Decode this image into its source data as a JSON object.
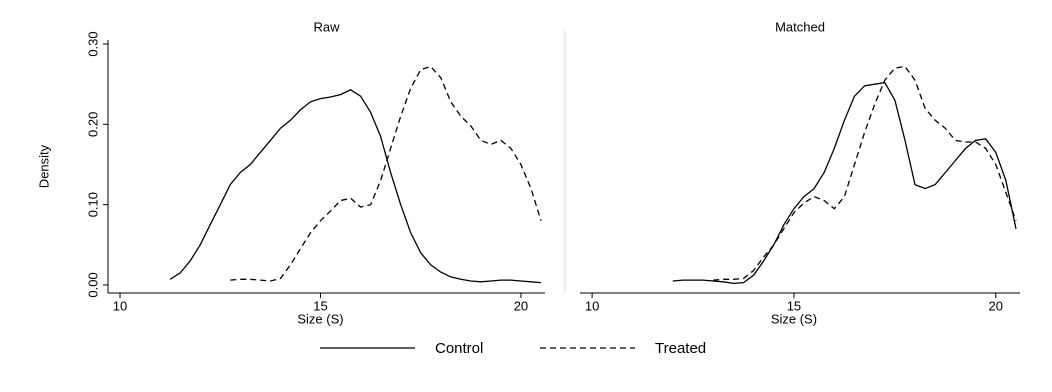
{
  "chart_data": [
    {
      "type": "line",
      "title": "Raw",
      "x_label": "Size (S)",
      "y_label": "Density",
      "x": [
        11.25,
        11.5,
        11.75,
        12,
        12.25,
        12.5,
        12.75,
        13,
        13.25,
        13.5,
        13.75,
        14,
        14.25,
        14.5,
        14.75,
        15,
        15.25,
        15.5,
        15.75,
        16,
        16.25,
        16.5,
        16.75,
        17,
        17.25,
        17.5,
        17.75,
        18,
        18.25,
        18.5,
        18.75,
        19,
        19.25,
        19.5,
        19.75,
        20,
        20.25,
        20.5
      ],
      "series": [
        {
          "name": "Control",
          "color": "#000000",
          "dash": "none",
          "values": [
            0.007,
            0.015,
            0.03,
            0.05,
            0.075,
            0.1,
            0.125,
            0.14,
            0.15,
            0.165,
            0.18,
            0.195,
            0.205,
            0.218,
            0.228,
            0.232,
            0.234,
            0.237,
            0.243,
            0.235,
            0.215,
            0.185,
            0.14,
            0.1,
            0.065,
            0.04,
            0.025,
            0.016,
            0.01,
            0.007,
            0.005,
            0.004,
            0.005,
            0.006,
            0.006,
            0.005,
            0.004,
            0.003
          ]
        },
        {
          "name": "Treated",
          "color": "#000000",
          "dash": "6,4",
          "values": [
            null,
            null,
            null,
            null,
            null,
            null,
            0.006,
            0.007,
            0.007,
            0.006,
            0.005,
            0.008,
            0.025,
            0.045,
            0.065,
            0.08,
            0.092,
            0.105,
            0.108,
            0.097,
            0.1,
            0.13,
            0.17,
            0.21,
            0.245,
            0.268,
            0.272,
            0.258,
            0.228,
            0.21,
            0.198,
            0.18,
            0.175,
            0.18,
            0.17,
            0.15,
            0.12,
            0.08
          ]
        }
      ],
      "xlim": [
        9.7,
        20.6
      ],
      "ylim": [
        -0.01,
        0.305
      ],
      "xticks": [
        10,
        15,
        20
      ],
      "yticks": [
        {
          "value": 0,
          "label": "0.00"
        },
        {
          "value": 0.1,
          "label": "0.10"
        },
        {
          "value": 0.2,
          "label": "0.20"
        },
        {
          "value": 0.3,
          "label": "0.30"
        }
      ]
    },
    {
      "type": "line",
      "title": "Matched",
      "x_label": "Size (S)",
      "x": [
        11.25,
        11.5,
        11.75,
        12,
        12.25,
        12.5,
        12.75,
        13,
        13.25,
        13.5,
        13.75,
        14,
        14.25,
        14.5,
        14.75,
        15,
        15.25,
        15.5,
        15.75,
        16,
        16.25,
        16.5,
        16.75,
        17,
        17.25,
        17.5,
        17.75,
        18,
        18.25,
        18.5,
        18.75,
        19,
        19.25,
        19.5,
        19.75,
        20,
        20.25,
        20.5
      ],
      "series": [
        {
          "color": "#000000",
          "dash": "none",
          "values": [
            null,
            null,
            null,
            0.005,
            0.006,
            0.006,
            0.006,
            0.005,
            0.004,
            0.002,
            0.003,
            0.012,
            0.03,
            0.05,
            0.075,
            0.095,
            0.11,
            0.12,
            0.14,
            0.17,
            0.205,
            0.235,
            0.248,
            0.25,
            0.252,
            0.23,
            0.18,
            0.125,
            0.12,
            0.125,
            0.14,
            0.155,
            0.17,
            0.18,
            0.182,
            0.165,
            0.13,
            0.07
          ]
        },
        {
          "color": "#000000",
          "dash": "6,4",
          "values": [
            null,
            null,
            null,
            null,
            null,
            null,
            null,
            0.006,
            0.007,
            0.007,
            0.008,
            0.018,
            0.035,
            0.05,
            0.07,
            0.09,
            0.102,
            0.11,
            0.105,
            0.095,
            0.11,
            0.15,
            0.19,
            0.225,
            0.255,
            0.27,
            0.272,
            0.255,
            0.22,
            0.205,
            0.195,
            0.18,
            0.178,
            0.178,
            0.17,
            0.15,
            0.115,
            0.08
          ]
        }
      ],
      "xlim": [
        9.7,
        20.6
      ],
      "ylim": [
        -0.01,
        0.305
      ],
      "xticks": [
        10,
        15,
        20
      ]
    }
  ]
}
